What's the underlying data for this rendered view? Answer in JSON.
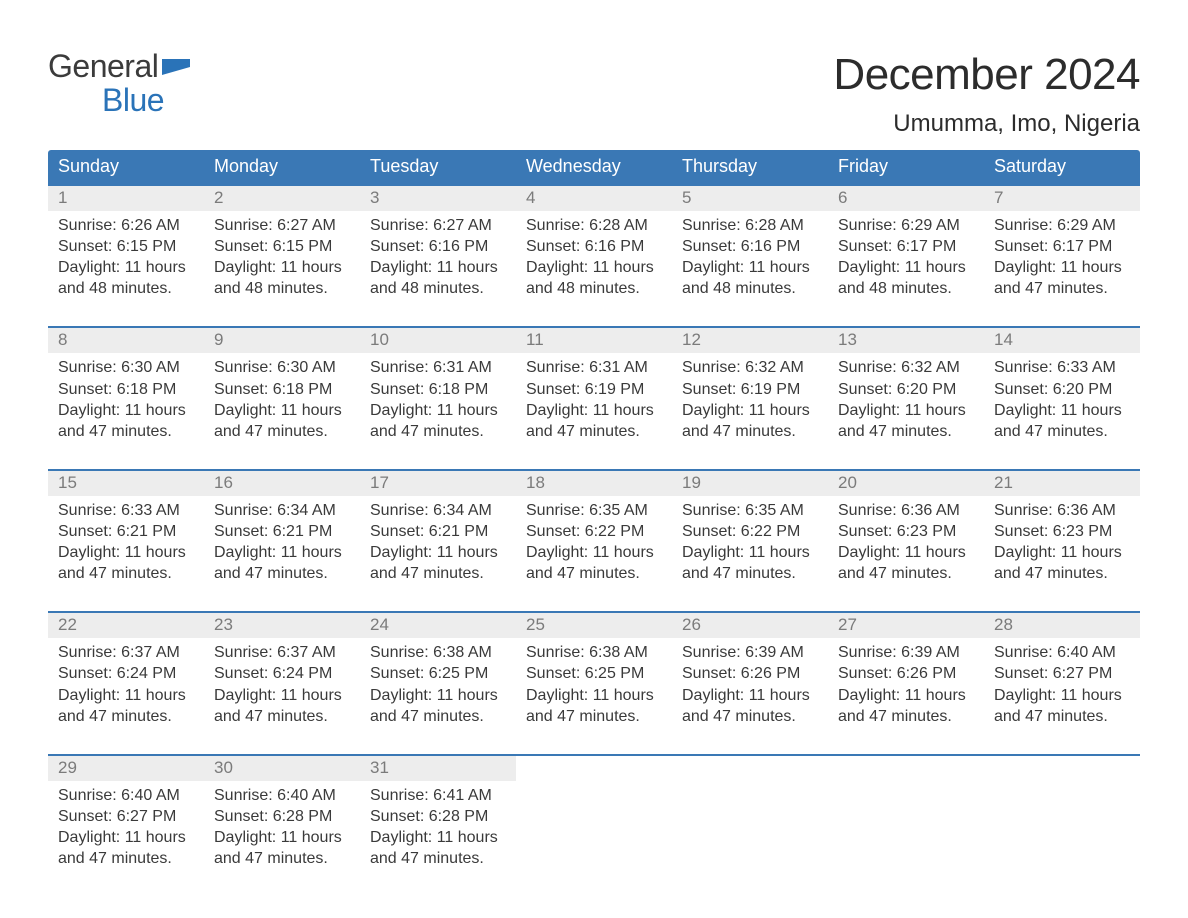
{
  "brand": {
    "general": "General",
    "blue": "Blue",
    "flag_color": "#2a73b8"
  },
  "title": "December 2024",
  "location": "Umumma, Imo, Nigeria",
  "colors": {
    "header_bg": "#3a78b5",
    "header_text": "#ffffff",
    "daynum_bg": "#ededed",
    "daynum_text": "#7b7b7b",
    "body_text": "#3a3a3a",
    "row_border": "#3a78b5",
    "page_bg": "#ffffff"
  },
  "typography": {
    "title_fontsize": 44,
    "location_fontsize": 24,
    "dayheader_fontsize": 18,
    "daynum_fontsize": 17,
    "body_fontsize": 16
  },
  "day_headers": [
    "Sunday",
    "Monday",
    "Tuesday",
    "Wednesday",
    "Thursday",
    "Friday",
    "Saturday"
  ],
  "days": [
    {
      "n": 1,
      "sunrise": "6:26 AM",
      "sunset": "6:15 PM",
      "daylight": "11 hours and 48 minutes."
    },
    {
      "n": 2,
      "sunrise": "6:27 AM",
      "sunset": "6:15 PM",
      "daylight": "11 hours and 48 minutes."
    },
    {
      "n": 3,
      "sunrise": "6:27 AM",
      "sunset": "6:16 PM",
      "daylight": "11 hours and 48 minutes."
    },
    {
      "n": 4,
      "sunrise": "6:28 AM",
      "sunset": "6:16 PM",
      "daylight": "11 hours and 48 minutes."
    },
    {
      "n": 5,
      "sunrise": "6:28 AM",
      "sunset": "6:16 PM",
      "daylight": "11 hours and 48 minutes."
    },
    {
      "n": 6,
      "sunrise": "6:29 AM",
      "sunset": "6:17 PM",
      "daylight": "11 hours and 48 minutes."
    },
    {
      "n": 7,
      "sunrise": "6:29 AM",
      "sunset": "6:17 PM",
      "daylight": "11 hours and 47 minutes."
    },
    {
      "n": 8,
      "sunrise": "6:30 AM",
      "sunset": "6:18 PM",
      "daylight": "11 hours and 47 minutes."
    },
    {
      "n": 9,
      "sunrise": "6:30 AM",
      "sunset": "6:18 PM",
      "daylight": "11 hours and 47 minutes."
    },
    {
      "n": 10,
      "sunrise": "6:31 AM",
      "sunset": "6:18 PM",
      "daylight": "11 hours and 47 minutes."
    },
    {
      "n": 11,
      "sunrise": "6:31 AM",
      "sunset": "6:19 PM",
      "daylight": "11 hours and 47 minutes."
    },
    {
      "n": 12,
      "sunrise": "6:32 AM",
      "sunset": "6:19 PM",
      "daylight": "11 hours and 47 minutes."
    },
    {
      "n": 13,
      "sunrise": "6:32 AM",
      "sunset": "6:20 PM",
      "daylight": "11 hours and 47 minutes."
    },
    {
      "n": 14,
      "sunrise": "6:33 AM",
      "sunset": "6:20 PM",
      "daylight": "11 hours and 47 minutes."
    },
    {
      "n": 15,
      "sunrise": "6:33 AM",
      "sunset": "6:21 PM",
      "daylight": "11 hours and 47 minutes."
    },
    {
      "n": 16,
      "sunrise": "6:34 AM",
      "sunset": "6:21 PM",
      "daylight": "11 hours and 47 minutes."
    },
    {
      "n": 17,
      "sunrise": "6:34 AM",
      "sunset": "6:21 PM",
      "daylight": "11 hours and 47 minutes."
    },
    {
      "n": 18,
      "sunrise": "6:35 AM",
      "sunset": "6:22 PM",
      "daylight": "11 hours and 47 minutes."
    },
    {
      "n": 19,
      "sunrise": "6:35 AM",
      "sunset": "6:22 PM",
      "daylight": "11 hours and 47 minutes."
    },
    {
      "n": 20,
      "sunrise": "6:36 AM",
      "sunset": "6:23 PM",
      "daylight": "11 hours and 47 minutes."
    },
    {
      "n": 21,
      "sunrise": "6:36 AM",
      "sunset": "6:23 PM",
      "daylight": "11 hours and 47 minutes."
    },
    {
      "n": 22,
      "sunrise": "6:37 AM",
      "sunset": "6:24 PM",
      "daylight": "11 hours and 47 minutes."
    },
    {
      "n": 23,
      "sunrise": "6:37 AM",
      "sunset": "6:24 PM",
      "daylight": "11 hours and 47 minutes."
    },
    {
      "n": 24,
      "sunrise": "6:38 AM",
      "sunset": "6:25 PM",
      "daylight": "11 hours and 47 minutes."
    },
    {
      "n": 25,
      "sunrise": "6:38 AM",
      "sunset": "6:25 PM",
      "daylight": "11 hours and 47 minutes."
    },
    {
      "n": 26,
      "sunrise": "6:39 AM",
      "sunset": "6:26 PM",
      "daylight": "11 hours and 47 minutes."
    },
    {
      "n": 27,
      "sunrise": "6:39 AM",
      "sunset": "6:26 PM",
      "daylight": "11 hours and 47 minutes."
    },
    {
      "n": 28,
      "sunrise": "6:40 AM",
      "sunset": "6:27 PM",
      "daylight": "11 hours and 47 minutes."
    },
    {
      "n": 29,
      "sunrise": "6:40 AM",
      "sunset": "6:27 PM",
      "daylight": "11 hours and 47 minutes."
    },
    {
      "n": 30,
      "sunrise": "6:40 AM",
      "sunset": "6:28 PM",
      "daylight": "11 hours and 47 minutes."
    },
    {
      "n": 31,
      "sunrise": "6:41 AM",
      "sunset": "6:28 PM",
      "daylight": "11 hours and 47 minutes."
    }
  ],
  "labels": {
    "sunrise": "Sunrise: ",
    "sunset": "Sunset: ",
    "daylight": "Daylight: "
  },
  "layout": {
    "start_weekday": 0,
    "columns": 7,
    "rows": 5
  }
}
